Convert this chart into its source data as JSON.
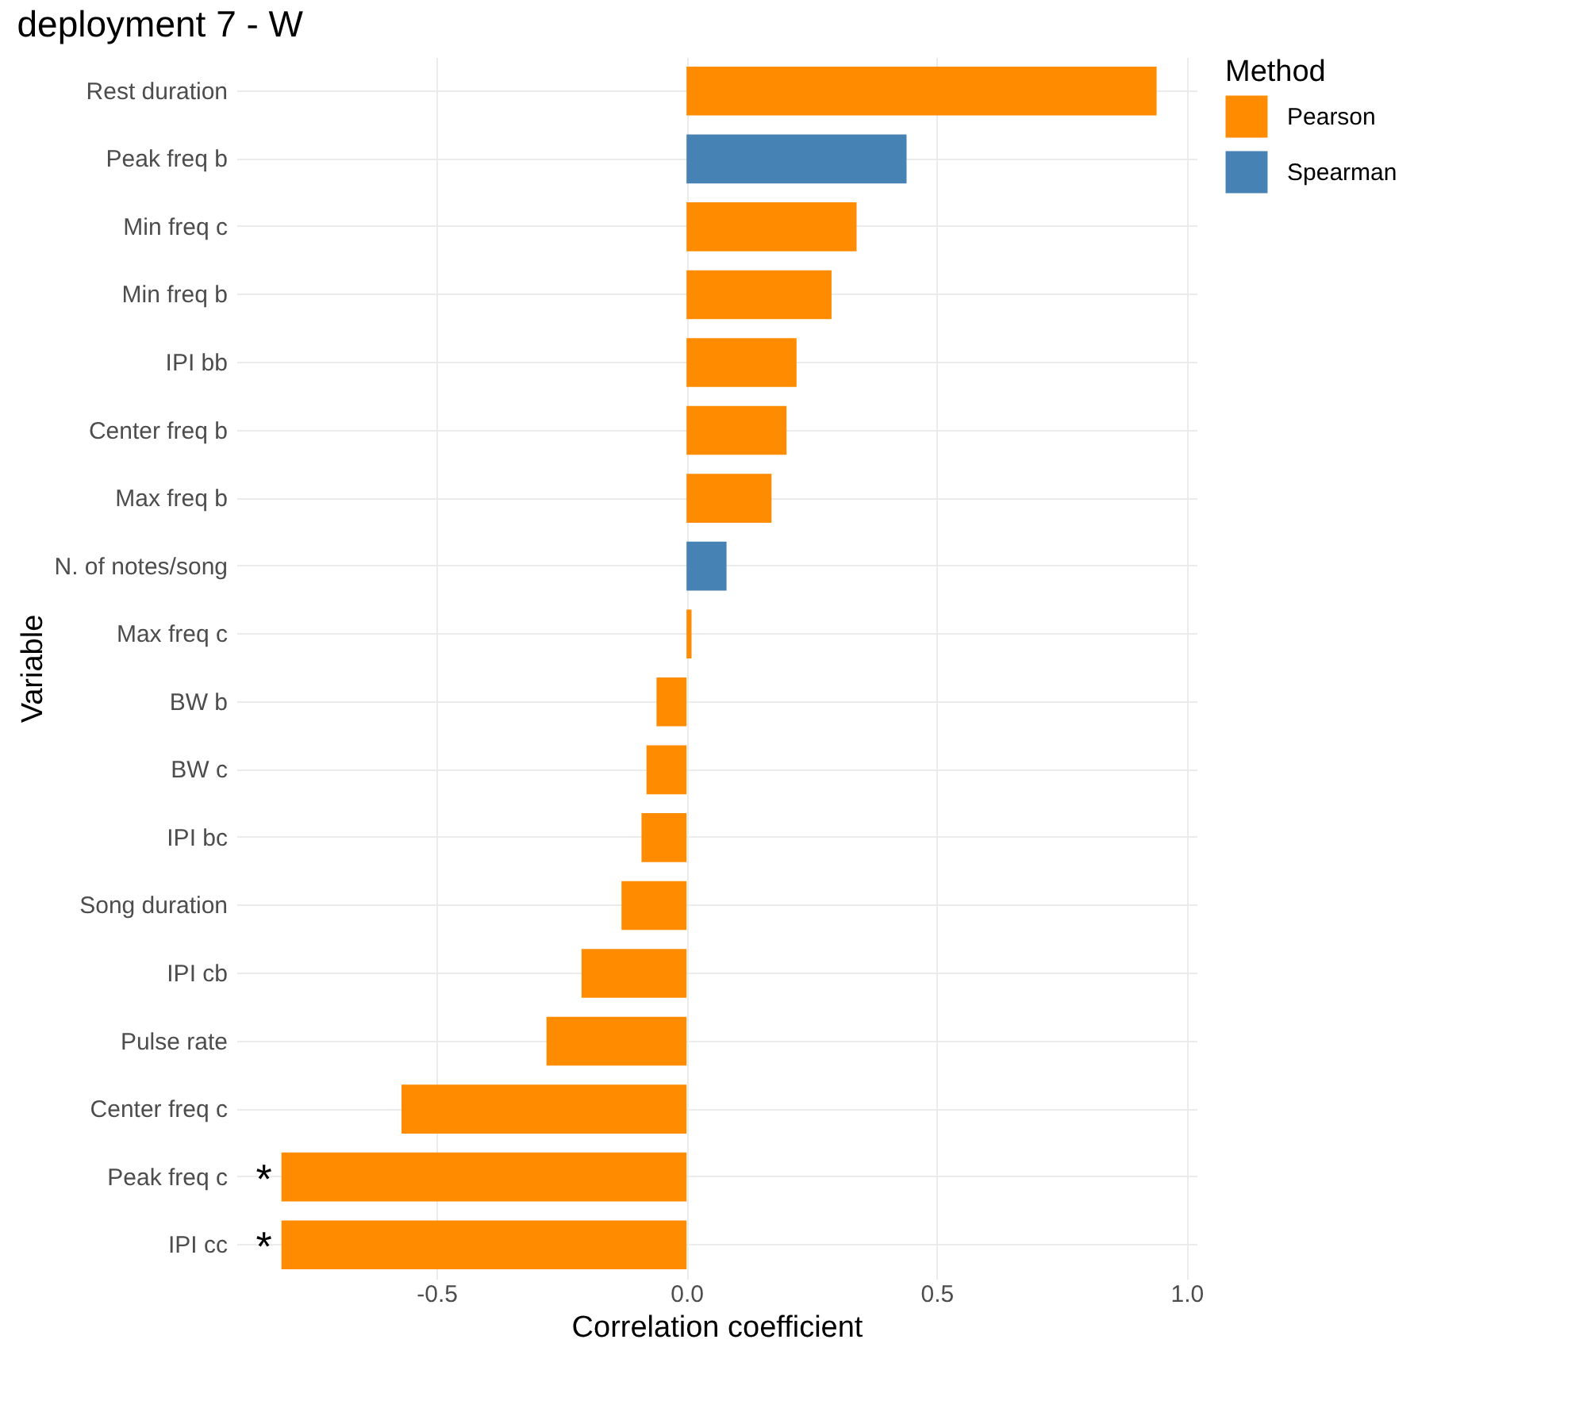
{
  "chart_data": {
    "type": "bar",
    "orientation": "horizontal",
    "title": "deployment 7 - W",
    "xlabel": "Correlation coefficient",
    "ylabel": "Variable",
    "legend_title": "Method",
    "categories": [
      "Rest duration",
      "Peak freq b",
      "Min freq c",
      "Min freq b",
      "IPI bb",
      "Center freq b",
      "Max freq b",
      "N. of notes/song",
      "Max freq c",
      "BW b",
      "BW c",
      "IPI bc",
      "Song duration",
      "IPI cb",
      "Pulse rate",
      "Center freq c",
      "Peak freq c",
      "IPI cc"
    ],
    "series": [
      {
        "name": "Pearson",
        "color": "#ff8c00",
        "values": [
          0.94,
          null,
          0.34,
          0.29,
          0.22,
          0.2,
          0.17,
          null,
          0.01,
          -0.06,
          -0.08,
          -0.09,
          -0.13,
          -0.21,
          -0.28,
          -0.57,
          -0.81,
          -0.81
        ]
      },
      {
        "name": "Spearman",
        "color": "#4682b4",
        "values": [
          null,
          0.44,
          null,
          null,
          null,
          null,
          null,
          0.08,
          null,
          null,
          null,
          null,
          null,
          null,
          null,
          null,
          null,
          null
        ]
      }
    ],
    "xlim": [
      -0.9,
      1.02
    ],
    "xticks": [
      {
        "value": -0.5,
        "label": "-0.5"
      },
      {
        "value": 0,
        "label": "0.0"
      },
      {
        "value": 0.5,
        "label": "0.5"
      },
      {
        "value": 1,
        "label": "1.0"
      }
    ],
    "annotations": [
      {
        "text": "*",
        "x": -0.81,
        "y": "Peak freq c"
      },
      {
        "text": "*",
        "x": -0.81,
        "y": "IPI cc"
      }
    ],
    "grid": true,
    "legend": "right"
  }
}
